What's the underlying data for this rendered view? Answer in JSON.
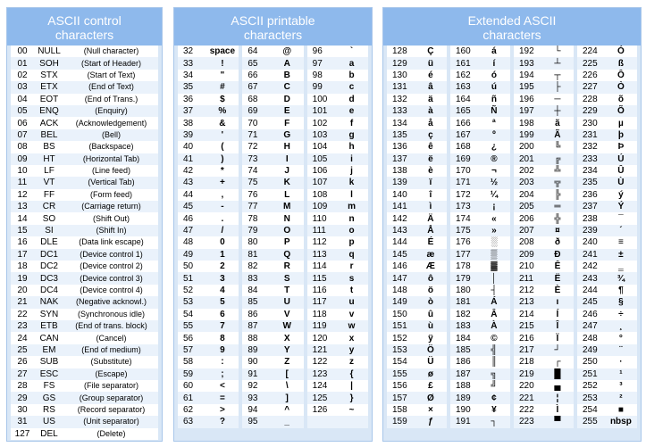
{
  "control": {
    "title1": "ASCII control",
    "title2": "characters",
    "rows": [
      [
        "00",
        "NULL",
        "(Null character)"
      ],
      [
        "01",
        "SOH",
        "(Start of Header)"
      ],
      [
        "02",
        "STX",
        "(Start of Text)"
      ],
      [
        "03",
        "ETX",
        "(End of Text)"
      ],
      [
        "04",
        "EOT",
        "(End of Trans.)"
      ],
      [
        "05",
        "ENQ",
        "(Enquiry)"
      ],
      [
        "06",
        "ACK",
        "(Acknowledgement)"
      ],
      [
        "07",
        "BEL",
        "(Bell)"
      ],
      [
        "08",
        "BS",
        "(Backspace)"
      ],
      [
        "09",
        "HT",
        "(Horizontal Tab)"
      ],
      [
        "10",
        "LF",
        "(Line feed)"
      ],
      [
        "11",
        "VT",
        "(Vertical Tab)"
      ],
      [
        "12",
        "FF",
        "(Form feed)"
      ],
      [
        "13",
        "CR",
        "(Carriage return)"
      ],
      [
        "14",
        "SO",
        "(Shift Out)"
      ],
      [
        "15",
        "SI",
        "(Shift In)"
      ],
      [
        "16",
        "DLE",
        "(Data link escape)"
      ],
      [
        "17",
        "DC1",
        "(Device control 1)"
      ],
      [
        "18",
        "DC2",
        "(Device control 2)"
      ],
      [
        "19",
        "DC3",
        "(Device control 3)"
      ],
      [
        "20",
        "DC4",
        "(Device control 4)"
      ],
      [
        "21",
        "NAK",
        "(Negative acknowl.)"
      ],
      [
        "22",
        "SYN",
        "(Synchronous idle)"
      ],
      [
        "23",
        "ETB",
        "(End of trans. block)"
      ],
      [
        "24",
        "CAN",
        "(Cancel)"
      ],
      [
        "25",
        "EM",
        "(End of medium)"
      ],
      [
        "26",
        "SUB",
        "(Substitute)"
      ],
      [
        "27",
        "ESC",
        "(Escape)"
      ],
      [
        "28",
        "FS",
        "(File separator)"
      ],
      [
        "29",
        "GS",
        "(Group separator)"
      ],
      [
        "30",
        "RS",
        "(Record separator)"
      ],
      [
        "31",
        "US",
        "(Unit separator)"
      ],
      [
        "127",
        "DEL",
        "(Delete)"
      ]
    ]
  },
  "printable": {
    "title1": "ASCII printable",
    "title2": "characters",
    "columns": [
      [
        [
          "32",
          "space"
        ],
        [
          "33",
          "!"
        ],
        [
          "34",
          "\""
        ],
        [
          "35",
          "#"
        ],
        [
          "36",
          "$"
        ],
        [
          "37",
          "%"
        ],
        [
          "38",
          "&"
        ],
        [
          "39",
          "'"
        ],
        [
          "40",
          "("
        ],
        [
          "41",
          ")"
        ],
        [
          "42",
          "*"
        ],
        [
          "43",
          "+"
        ],
        [
          "44",
          ","
        ],
        [
          "45",
          "-"
        ],
        [
          "46",
          "."
        ],
        [
          "47",
          "/"
        ],
        [
          "48",
          "0"
        ],
        [
          "49",
          "1"
        ],
        [
          "50",
          "2"
        ],
        [
          "51",
          "3"
        ],
        [
          "52",
          "4"
        ],
        [
          "53",
          "5"
        ],
        [
          "54",
          "6"
        ],
        [
          "55",
          "7"
        ],
        [
          "56",
          "8"
        ],
        [
          "57",
          "9"
        ],
        [
          "58",
          ":"
        ],
        [
          "59",
          ";"
        ],
        [
          "60",
          "<"
        ],
        [
          "61",
          "="
        ],
        [
          "62",
          ">"
        ],
        [
          "63",
          "?"
        ]
      ],
      [
        [
          "64",
          "@"
        ],
        [
          "65",
          "A"
        ],
        [
          "66",
          "B"
        ],
        [
          "67",
          "C"
        ],
        [
          "68",
          "D"
        ],
        [
          "69",
          "E"
        ],
        [
          "70",
          "F"
        ],
        [
          "71",
          "G"
        ],
        [
          "72",
          "H"
        ],
        [
          "73",
          "I"
        ],
        [
          "74",
          "J"
        ],
        [
          "75",
          "K"
        ],
        [
          "76",
          "L"
        ],
        [
          "77",
          "M"
        ],
        [
          "78",
          "N"
        ],
        [
          "79",
          "O"
        ],
        [
          "80",
          "P"
        ],
        [
          "81",
          "Q"
        ],
        [
          "82",
          "R"
        ],
        [
          "83",
          "S"
        ],
        [
          "84",
          "T"
        ],
        [
          "85",
          "U"
        ],
        [
          "86",
          "V"
        ],
        [
          "87",
          "W"
        ],
        [
          "88",
          "X"
        ],
        [
          "89",
          "Y"
        ],
        [
          "90",
          "Z"
        ],
        [
          "91",
          "["
        ],
        [
          "92",
          "\\"
        ],
        [
          "93",
          "]"
        ],
        [
          "94",
          "^"
        ],
        [
          "95",
          "_"
        ]
      ],
      [
        [
          "96",
          "`"
        ],
        [
          "97",
          "a"
        ],
        [
          "98",
          "b"
        ],
        [
          "99",
          "c"
        ],
        [
          "100",
          "d"
        ],
        [
          "101",
          "e"
        ],
        [
          "102",
          "f"
        ],
        [
          "103",
          "g"
        ],
        [
          "104",
          "h"
        ],
        [
          "105",
          "i"
        ],
        [
          "106",
          "j"
        ],
        [
          "107",
          "k"
        ],
        [
          "108",
          "l"
        ],
        [
          "109",
          "m"
        ],
        [
          "110",
          "n"
        ],
        [
          "111",
          "o"
        ],
        [
          "112",
          "p"
        ],
        [
          "113",
          "q"
        ],
        [
          "114",
          "r"
        ],
        [
          "115",
          "s"
        ],
        [
          "116",
          "t"
        ],
        [
          "117",
          "u"
        ],
        [
          "118",
          "v"
        ],
        [
          "119",
          "w"
        ],
        [
          "120",
          "x"
        ],
        [
          "121",
          "y"
        ],
        [
          "122",
          "z"
        ],
        [
          "123",
          "{"
        ],
        [
          "124",
          "|"
        ],
        [
          "125",
          "}"
        ],
        [
          "126",
          "~"
        ],
        [
          "",
          ""
        ]
      ]
    ]
  },
  "extended": {
    "title1": "Extended ASCII",
    "title2": "characters",
    "columns": [
      [
        [
          "128",
          "Ç"
        ],
        [
          "129",
          "ü"
        ],
        [
          "130",
          "é"
        ],
        [
          "131",
          "â"
        ],
        [
          "132",
          "ä"
        ],
        [
          "133",
          "à"
        ],
        [
          "134",
          "å"
        ],
        [
          "135",
          "ç"
        ],
        [
          "136",
          "ê"
        ],
        [
          "137",
          "ë"
        ],
        [
          "138",
          "è"
        ],
        [
          "139",
          "ï"
        ],
        [
          "140",
          "î"
        ],
        [
          "141",
          "ì"
        ],
        [
          "142",
          "Ä"
        ],
        [
          "143",
          "Å"
        ],
        [
          "144",
          "É"
        ],
        [
          "145",
          "æ"
        ],
        [
          "146",
          "Æ"
        ],
        [
          "147",
          "ô"
        ],
        [
          "148",
          "ö"
        ],
        [
          "149",
          "ò"
        ],
        [
          "150",
          "û"
        ],
        [
          "151",
          "ù"
        ],
        [
          "152",
          "ÿ"
        ],
        [
          "153",
          "Ö"
        ],
        [
          "154",
          "Ü"
        ],
        [
          "155",
          "ø"
        ],
        [
          "156",
          "£"
        ],
        [
          "157",
          "Ø"
        ],
        [
          "158",
          "×"
        ],
        [
          "159",
          "ƒ"
        ]
      ],
      [
        [
          "160",
          "á"
        ],
        [
          "161",
          "í"
        ],
        [
          "162",
          "ó"
        ],
        [
          "163",
          "ú"
        ],
        [
          "164",
          "ñ"
        ],
        [
          "165",
          "Ñ"
        ],
        [
          "166",
          "ª"
        ],
        [
          "167",
          "º"
        ],
        [
          "168",
          "¿"
        ],
        [
          "169",
          "®"
        ],
        [
          "170",
          "¬"
        ],
        [
          "171",
          "½"
        ],
        [
          "172",
          "¼"
        ],
        [
          "173",
          "¡"
        ],
        [
          "174",
          "«"
        ],
        [
          "175",
          "»"
        ],
        [
          "176",
          "░"
        ],
        [
          "177",
          "▒"
        ],
        [
          "178",
          "▓"
        ],
        [
          "179",
          "│"
        ],
        [
          "180",
          "┤"
        ],
        [
          "181",
          "Á"
        ],
        [
          "182",
          "Â"
        ],
        [
          "183",
          "À"
        ],
        [
          "184",
          "©"
        ],
        [
          "185",
          "╣"
        ],
        [
          "186",
          "║"
        ],
        [
          "187",
          "╗"
        ],
        [
          "188",
          "╝"
        ],
        [
          "189",
          "¢"
        ],
        [
          "190",
          "¥"
        ],
        [
          "191",
          "┐"
        ]
      ],
      [
        [
          "192",
          "└"
        ],
        [
          "193",
          "┴"
        ],
        [
          "194",
          "┬"
        ],
        [
          "195",
          "├"
        ],
        [
          "196",
          "─"
        ],
        [
          "197",
          "┼"
        ],
        [
          "198",
          "ã"
        ],
        [
          "199",
          "Ã"
        ],
        [
          "200",
          "╚"
        ],
        [
          "201",
          "╔"
        ],
        [
          "202",
          "╩"
        ],
        [
          "203",
          "╦"
        ],
        [
          "204",
          "╠"
        ],
        [
          "205",
          "═"
        ],
        [
          "206",
          "╬"
        ],
        [
          "207",
          "¤"
        ],
        [
          "208",
          "ð"
        ],
        [
          "209",
          "Ð"
        ],
        [
          "210",
          "Ê"
        ],
        [
          "211",
          "Ë"
        ],
        [
          "212",
          "È"
        ],
        [
          "213",
          "ı"
        ],
        [
          "214",
          "Í"
        ],
        [
          "215",
          "Î"
        ],
        [
          "216",
          "Ï"
        ],
        [
          "217",
          "┘"
        ],
        [
          "218",
          "┌"
        ],
        [
          "219",
          "█"
        ],
        [
          "220",
          "▄"
        ],
        [
          "221",
          "¦"
        ],
        [
          "222",
          "Ì"
        ],
        [
          "223",
          "▀"
        ]
      ],
      [
        [
          "224",
          "Ó"
        ],
        [
          "225",
          "ß"
        ],
        [
          "226",
          "Ô"
        ],
        [
          "227",
          "Ò"
        ],
        [
          "228",
          "õ"
        ],
        [
          "229",
          "Õ"
        ],
        [
          "230",
          "µ"
        ],
        [
          "231",
          "þ"
        ],
        [
          "232",
          "Þ"
        ],
        [
          "233",
          "Ú"
        ],
        [
          "234",
          "Û"
        ],
        [
          "235",
          "Ù"
        ],
        [
          "236",
          "ý"
        ],
        [
          "237",
          "Ý"
        ],
        [
          "238",
          "¯"
        ],
        [
          "239",
          "´"
        ],
        [
          "240",
          "≡"
        ],
        [
          "241",
          "±"
        ],
        [
          "242",
          "‗"
        ],
        [
          "243",
          "¾"
        ],
        [
          "244",
          "¶"
        ],
        [
          "245",
          "§"
        ],
        [
          "246",
          "÷"
        ],
        [
          "247",
          "¸"
        ],
        [
          "248",
          "°"
        ],
        [
          "249",
          "¨"
        ],
        [
          "250",
          "·"
        ],
        [
          "251",
          "¹"
        ],
        [
          "252",
          "³"
        ],
        [
          "253",
          "²"
        ],
        [
          "254",
          "■"
        ],
        [
          "255",
          "nbsp"
        ]
      ]
    ]
  },
  "colors": {
    "header": "#8eb9ec",
    "panel": "#d9e7f6",
    "row_alt": "#eaf2fb"
  }
}
